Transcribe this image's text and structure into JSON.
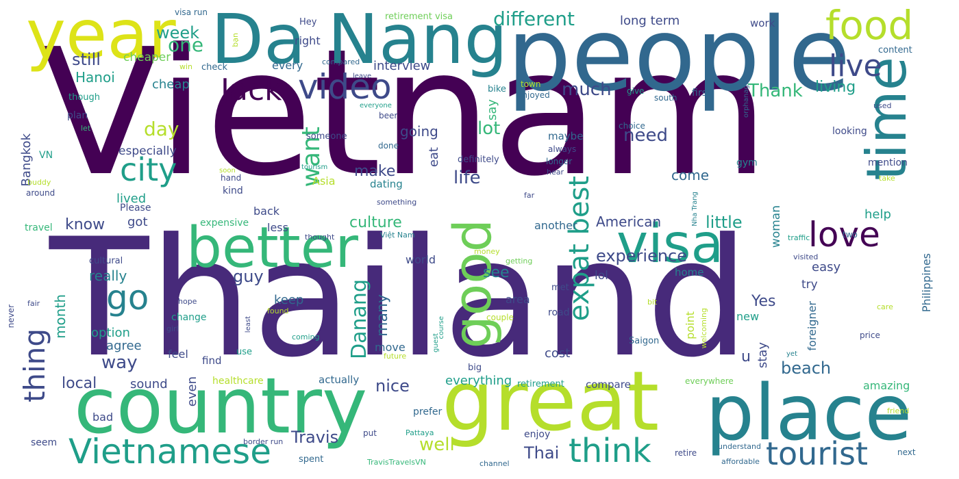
{
  "word_cloud": {
    "palette": {
      "background": "#ffffff",
      "deep_purple": "#440154",
      "indigo": "#472a7a",
      "blue_violet": "#3e4a89",
      "blue": "#31688e",
      "steel_teal": "#26828e",
      "teal": "#1f9e89",
      "green_teal": "#35b779",
      "green": "#6ece58",
      "lime": "#b5de2b",
      "yellow": "#dde318"
    },
    "words": [
      {
        "text": "Vietnam"
      },
      {
        "text": "Thailand"
      },
      {
        "text": "people"
      },
      {
        "text": "Da Nang"
      },
      {
        "text": "country"
      },
      {
        "text": "great"
      },
      {
        "text": "place"
      },
      {
        "text": "year"
      },
      {
        "text": "better"
      },
      {
        "text": "visa"
      },
      {
        "text": "time"
      },
      {
        "text": "good"
      },
      {
        "text": "Vietnamese"
      },
      {
        "text": "food"
      },
      {
        "text": "video"
      },
      {
        "text": "Jack"
      },
      {
        "text": "city"
      },
      {
        "text": "live"
      },
      {
        "text": "love"
      },
      {
        "text": "think"
      },
      {
        "text": "tourist"
      },
      {
        "text": "thing"
      },
      {
        "text": "expat best"
      },
      {
        "text": "go"
      },
      {
        "text": "Danang"
      },
      {
        "text": "want"
      },
      {
        "text": "different"
      },
      {
        "text": "one"
      },
      {
        "text": "week"
      },
      {
        "text": "still"
      },
      {
        "text": "Hanoi"
      },
      {
        "text": "cheaper"
      },
      {
        "text": "cheap"
      },
      {
        "text": "day"
      },
      {
        "text": "much"
      },
      {
        "text": "Thank"
      },
      {
        "text": "living"
      },
      {
        "text": "long term"
      },
      {
        "text": "interview"
      },
      {
        "text": "every"
      },
      {
        "text": "right"
      },
      {
        "text": "work"
      },
      {
        "text": "content"
      },
      {
        "text": "Hey"
      },
      {
        "text": "retirement visa"
      },
      {
        "text": "visa run"
      },
      {
        "text": "bạn"
      },
      {
        "text": "win"
      },
      {
        "text": "check"
      },
      {
        "text": "compared"
      },
      {
        "text": "leave"
      },
      {
        "text": "town"
      },
      {
        "text": "enjoyed"
      },
      {
        "text": "bike"
      },
      {
        "text": "give"
      },
      {
        "text": "south"
      },
      {
        "text": "first"
      },
      {
        "text": "orphanage"
      },
      {
        "text": "used"
      },
      {
        "text": "though"
      },
      {
        "text": "plan"
      },
      {
        "text": "let"
      },
      {
        "text": "everyone"
      },
      {
        "text": "beer"
      },
      {
        "text": "Bangkok"
      },
      {
        "text": "VN"
      },
      {
        "text": "especially"
      },
      {
        "text": "someone"
      },
      {
        "text": "done"
      },
      {
        "text": "lot"
      },
      {
        "text": "need"
      },
      {
        "text": "going"
      },
      {
        "text": "say"
      },
      {
        "text": "maybe"
      },
      {
        "text": "choice"
      },
      {
        "text": "looking"
      },
      {
        "text": "always"
      },
      {
        "text": "definitely"
      },
      {
        "text": "longer"
      },
      {
        "text": "mention"
      },
      {
        "text": "gym"
      },
      {
        "text": "make"
      },
      {
        "text": "eat"
      },
      {
        "text": "life"
      },
      {
        "text": "tourism"
      },
      {
        "text": "hear"
      },
      {
        "text": "Nha Trang"
      },
      {
        "text": "soon"
      },
      {
        "text": "hand"
      },
      {
        "text": "take"
      },
      {
        "text": "buddy"
      },
      {
        "text": "Asia"
      },
      {
        "text": "dating"
      },
      {
        "text": "come"
      },
      {
        "text": "kind"
      },
      {
        "text": "around"
      },
      {
        "text": "lived"
      },
      {
        "text": "something"
      },
      {
        "text": "far"
      },
      {
        "text": "back"
      },
      {
        "text": "Please"
      },
      {
        "text": "less"
      },
      {
        "text": "know"
      },
      {
        "text": "got"
      },
      {
        "text": "expensive"
      },
      {
        "text": "culture"
      },
      {
        "text": "woman"
      },
      {
        "text": "little"
      },
      {
        "text": "American"
      },
      {
        "text": "help"
      },
      {
        "text": "thought"
      },
      {
        "text": "Việt Nam"
      },
      {
        "text": "another"
      },
      {
        "text": "traffic"
      },
      {
        "text": "two"
      },
      {
        "text": "travel"
      },
      {
        "text": "visited"
      },
      {
        "text": "experience"
      },
      {
        "text": "month"
      },
      {
        "text": "cultural"
      },
      {
        "text": "really"
      },
      {
        "text": "guy"
      },
      {
        "text": "see"
      },
      {
        "text": "lol"
      },
      {
        "text": "money"
      },
      {
        "text": "getting"
      },
      {
        "text": "world"
      },
      {
        "text": "easy"
      },
      {
        "text": "home"
      },
      {
        "text": "Philippines"
      },
      {
        "text": "never"
      },
      {
        "text": "try"
      },
      {
        "text": "keep"
      },
      {
        "text": "many"
      },
      {
        "text": "area"
      },
      {
        "text": "met"
      },
      {
        "text": "fair"
      },
      {
        "text": "hope"
      },
      {
        "text": "bit"
      },
      {
        "text": "care"
      },
      {
        "text": "change"
      },
      {
        "text": "road"
      },
      {
        "text": "couple"
      },
      {
        "text": "new"
      },
      {
        "text": "found"
      },
      {
        "text": "least"
      },
      {
        "text": "course"
      },
      {
        "text": "girl"
      },
      {
        "text": "option"
      },
      {
        "text": "Yes"
      },
      {
        "text": "point"
      },
      {
        "text": "welcoming"
      },
      {
        "text": "foreigner"
      },
      {
        "text": "guest"
      },
      {
        "text": "coming"
      },
      {
        "text": "price"
      },
      {
        "text": "agree"
      },
      {
        "text": "way"
      },
      {
        "text": "feel"
      },
      {
        "text": "find"
      },
      {
        "text": "move"
      },
      {
        "text": "cost"
      },
      {
        "text": "Saigon"
      },
      {
        "text": "u"
      },
      {
        "text": "stay"
      },
      {
        "text": "use"
      },
      {
        "text": "future"
      },
      {
        "text": "yet"
      },
      {
        "text": "local"
      },
      {
        "text": "sound"
      },
      {
        "text": "even"
      },
      {
        "text": "nice"
      },
      {
        "text": "healthcare"
      },
      {
        "text": "actually"
      },
      {
        "text": "big"
      },
      {
        "text": "everything"
      },
      {
        "text": "retirement"
      },
      {
        "text": "compare"
      },
      {
        "text": "everywhere"
      },
      {
        "text": "beach"
      },
      {
        "text": "amazing"
      },
      {
        "text": "bad"
      },
      {
        "text": "prefer"
      },
      {
        "text": "friend"
      },
      {
        "text": "seem"
      },
      {
        "text": "border run"
      },
      {
        "text": "put"
      },
      {
        "text": "Pattaya"
      },
      {
        "text": "enjoy"
      },
      {
        "text": "retire"
      },
      {
        "text": "understand"
      },
      {
        "text": "next"
      },
      {
        "text": "spent"
      },
      {
        "text": "Travis"
      },
      {
        "text": "well"
      },
      {
        "text": "Thai"
      },
      {
        "text": "TravisTravelsVN"
      },
      {
        "text": "channel"
      },
      {
        "text": "affordable"
      }
    ]
  }
}
